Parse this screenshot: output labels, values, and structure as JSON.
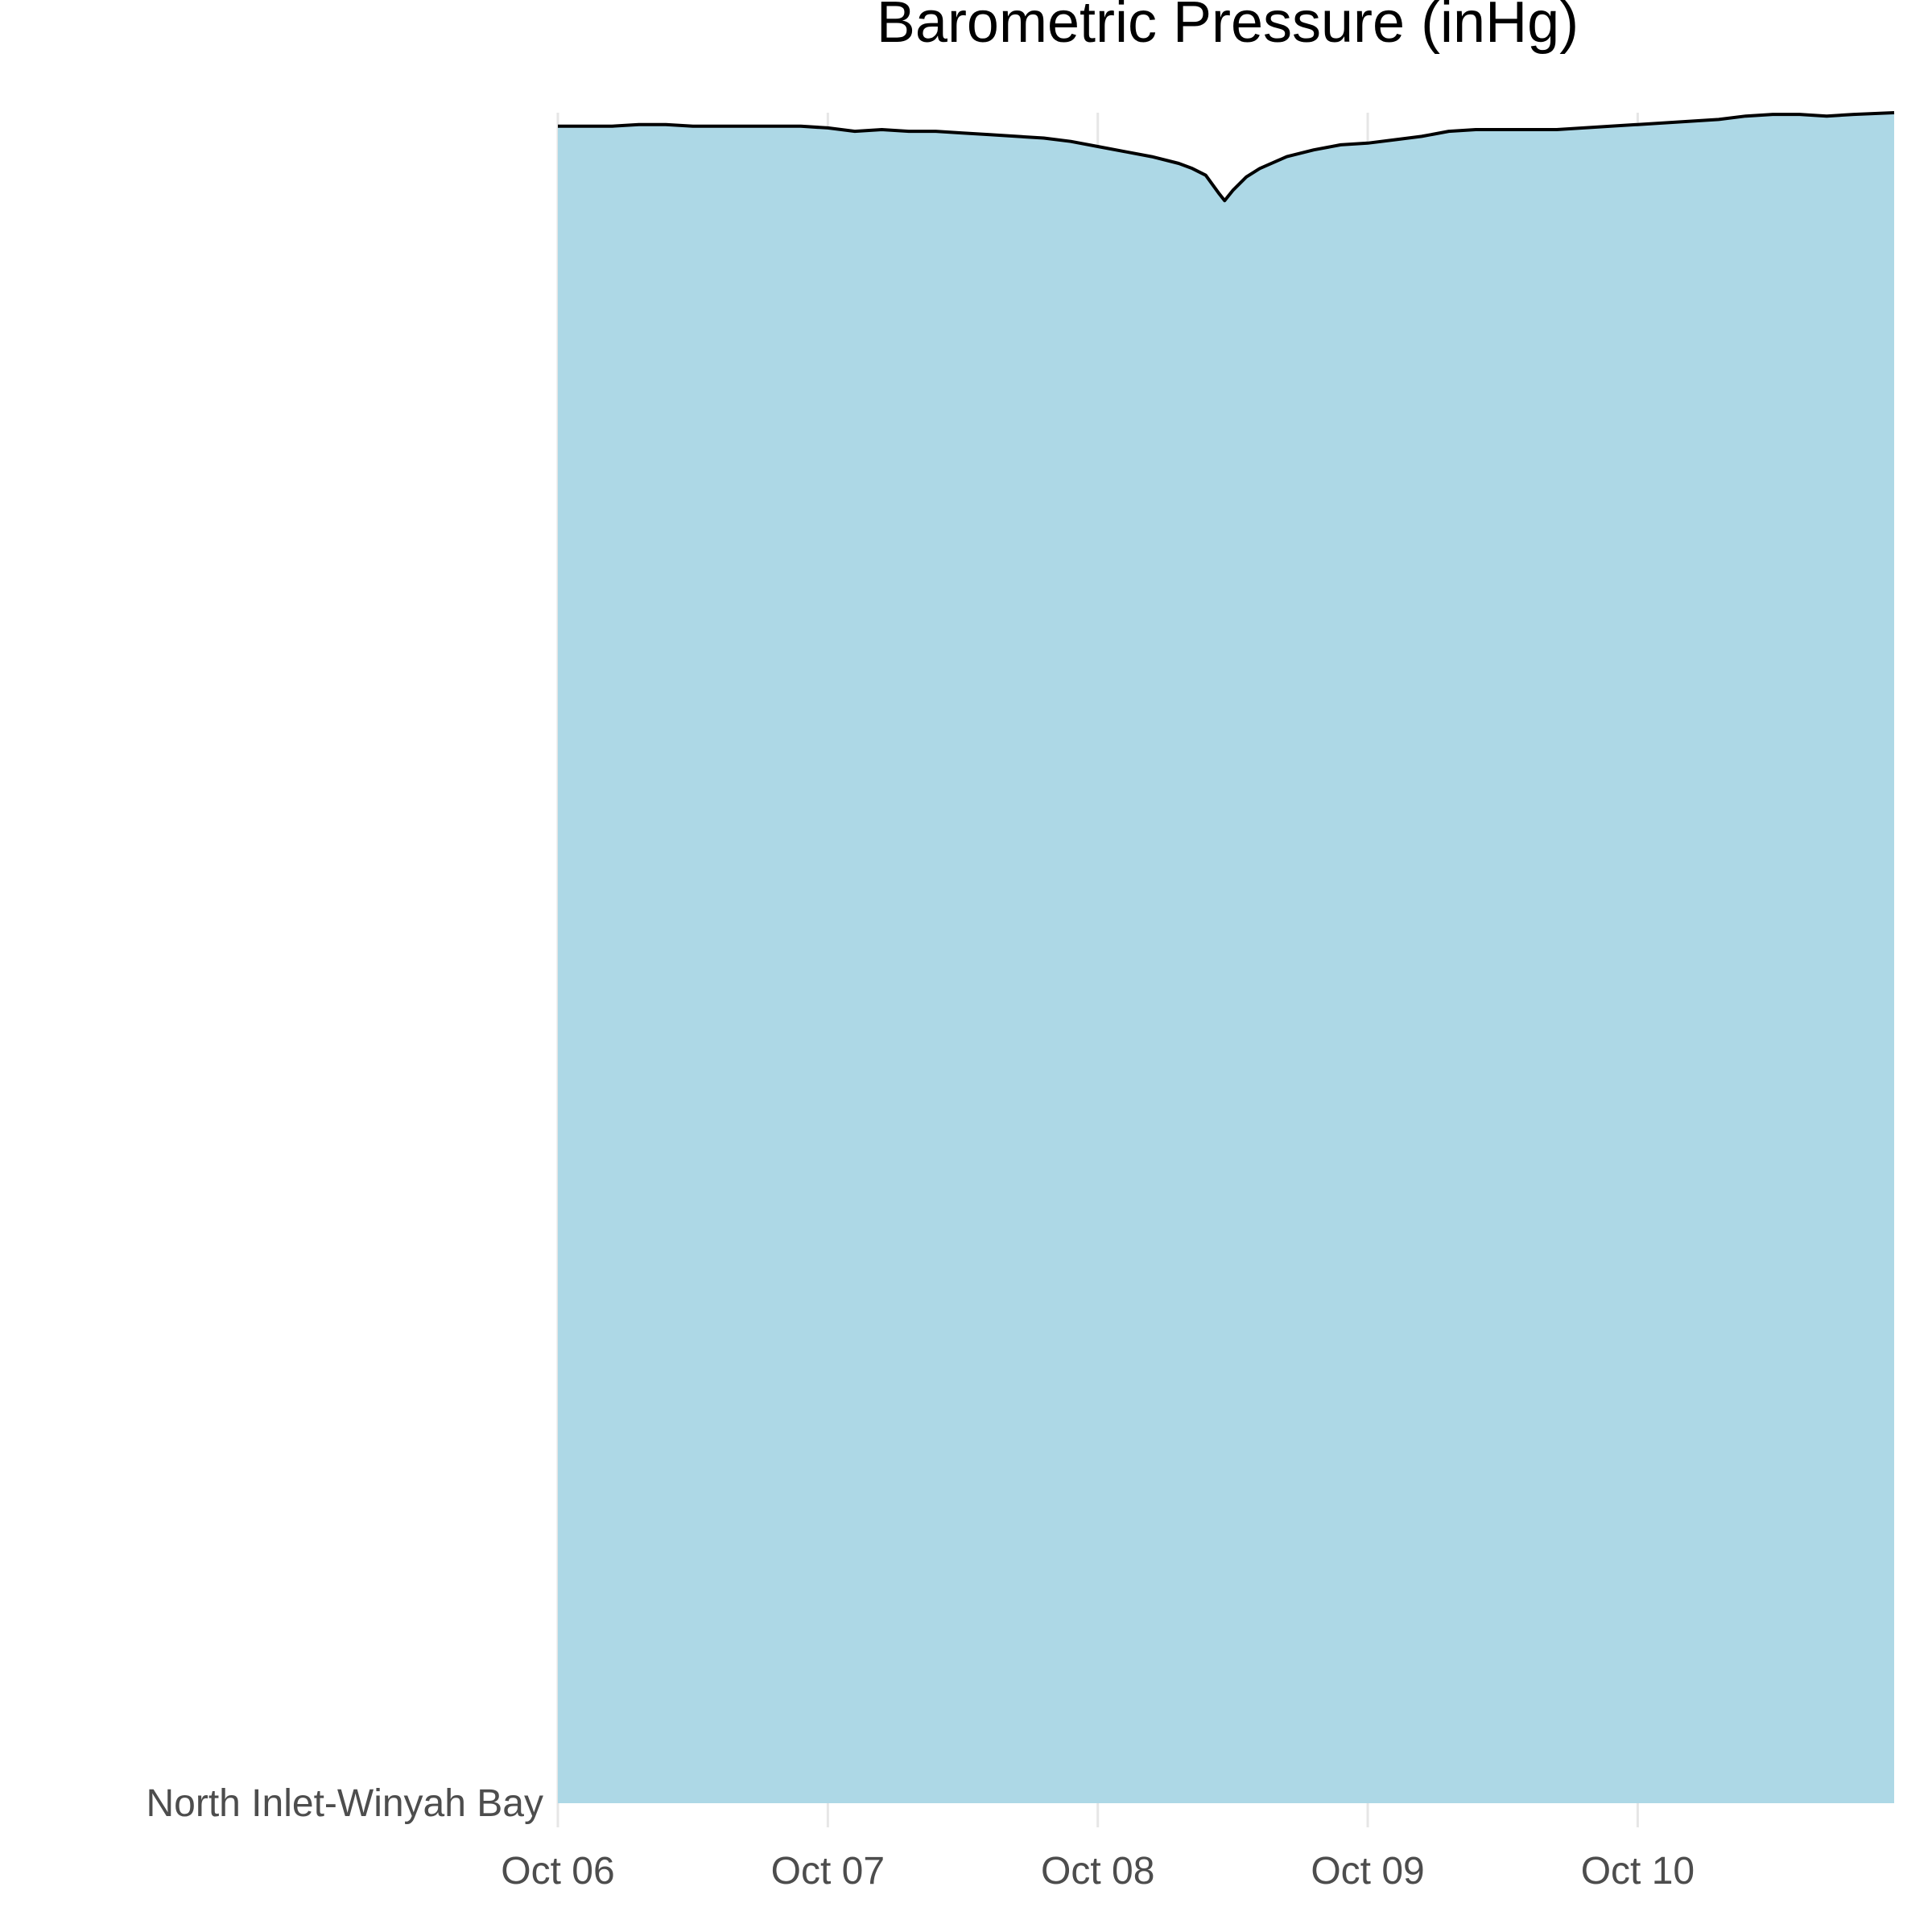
{
  "chart_data": {
    "type": "area",
    "title": "Barometric Pressure (inHg)",
    "xlabel": "",
    "ylabel": "",
    "x_ticks": [
      "Oct 06",
      "Oct 07",
      "Oct 08",
      "Oct 09",
      "Oct 10"
    ],
    "y_ticks": [
      "North Inlet-Winyah Bay"
    ],
    "xlim": [
      0,
      4.95
    ],
    "ylim": [
      0,
      1
    ],
    "grid": "x-major",
    "legend": "none",
    "fill_color": "#ADD8E6",
    "line_color": "#000000",
    "series": [
      {
        "x": [
          0,
          0.1,
          0.2,
          0.3,
          0.4,
          0.5,
          0.6,
          0.7,
          0.8,
          0.9,
          1.0,
          1.1,
          1.2,
          1.3,
          1.4,
          1.5,
          1.6,
          1.7,
          1.8,
          1.9,
          2.0,
          2.1,
          2.2,
          2.3,
          2.35,
          2.4,
          2.45,
          2.47,
          2.5,
          2.55,
          2.6,
          2.7,
          2.8,
          2.9,
          3.0,
          3.1,
          3.2,
          3.3,
          3.4,
          3.5,
          3.6,
          3.7,
          3.8,
          3.9,
          4.0,
          4.1,
          4.2,
          4.3,
          4.4,
          4.5,
          4.6,
          4.7,
          4.8,
          4.95
        ],
        "y": [
          0.992,
          0.992,
          0.992,
          0.993,
          0.993,
          0.992,
          0.992,
          0.992,
          0.992,
          0.992,
          0.991,
          0.989,
          0.99,
          0.989,
          0.989,
          0.988,
          0.987,
          0.986,
          0.985,
          0.983,
          0.98,
          0.977,
          0.974,
          0.97,
          0.967,
          0.963,
          0.952,
          0.948,
          0.954,
          0.962,
          0.967,
          0.974,
          0.978,
          0.981,
          0.982,
          0.984,
          0.986,
          0.989,
          0.99,
          0.99,
          0.99,
          0.99,
          0.991,
          0.992,
          0.993,
          0.994,
          0.995,
          0.996,
          0.998,
          0.999,
          0.999,
          0.998,
          0.999,
          1.0
        ]
      }
    ]
  }
}
